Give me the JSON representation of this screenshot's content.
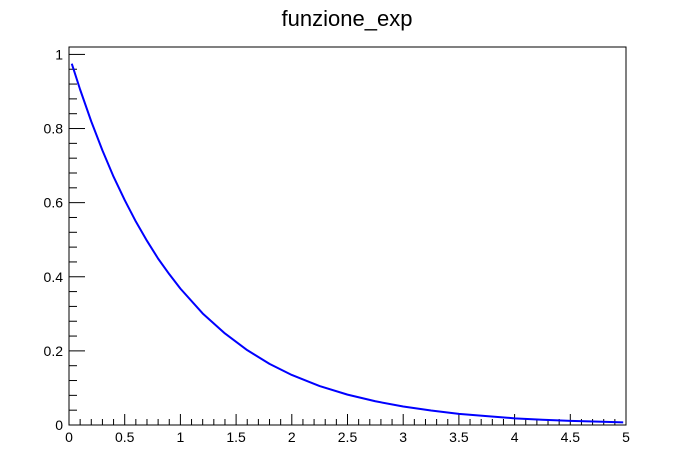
{
  "chart_data": {
    "type": "line",
    "title": "funzione_exp",
    "xlabel": "",
    "ylabel": "",
    "xlim": [
      0,
      5
    ],
    "ylim": [
      0,
      1.02
    ],
    "grid": false,
    "x_tick_labels": [
      "0",
      "0.5",
      "1",
      "1.5",
      "2",
      "2.5",
      "3",
      "3.5",
      "4",
      "4.5",
      "5"
    ],
    "y_tick_labels": [
      "0",
      "0.2",
      "0.4",
      "0.6",
      "0.8",
      "1"
    ],
    "series": [
      {
        "color": "#0000ff",
        "x": [
          0.025,
          0.1,
          0.2,
          0.3,
          0.4,
          0.5,
          0.6,
          0.7,
          0.8,
          0.9,
          1.0,
          1.2,
          1.4,
          1.6,
          1.8,
          2.0,
          2.25,
          2.5,
          2.75,
          3.0,
          3.25,
          3.5,
          3.75,
          4.0,
          4.25,
          4.5,
          4.75,
          4.975
        ],
        "y": [
          0.975,
          0.905,
          0.819,
          0.741,
          0.67,
          0.607,
          0.549,
          0.497,
          0.449,
          0.407,
          0.368,
          0.301,
          0.247,
          0.202,
          0.165,
          0.135,
          0.105,
          0.082,
          0.064,
          0.05,
          0.039,
          0.03,
          0.024,
          0.018,
          0.014,
          0.011,
          0.009,
          0.007
        ]
      }
    ]
  }
}
